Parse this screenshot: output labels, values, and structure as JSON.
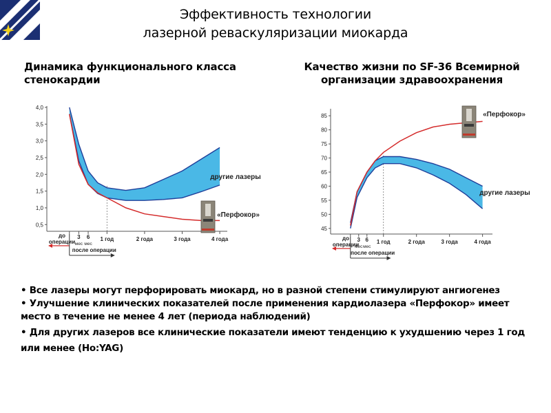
{
  "header": {
    "title_line1": "Эффективность технологии",
    "title_line2": "лазерной реваскуляризации миокарда",
    "logo_icon": "star-emblem-logo-icon"
  },
  "left_chart": {
    "subtitle": "Динамика функционального класса стенокардии"
  },
  "right_chart": {
    "subtitle": "Качество жизни по SF-36 Всемирной организации здравоохранения"
  },
  "bullets": [
    "• Все лазеры могут перфорировать миокард, но в разной степени стимулируют ангиогенез",
    "• Улучшение клинических показателей после применения кардиолазера «Перфокор» имеет место в течение не менее 4 лет (периода наблюдений)",
    "• Для других лазеров все клинические показатели имеют тенденцию к ухудшению через 1 год или менее (Ho:YAG)"
  ],
  "colors": {
    "perfokor_line": "#d42a2a",
    "band_fill": "#4ab8e6",
    "band_edge": "#1f3f9a",
    "axis": "#555555"
  },
  "chart_data": [
    {
      "type": "area",
      "x_ticks": [
        {
          "x": 0,
          "label": "до\nоперации"
        },
        {
          "x": 0.25,
          "label": "3\nмес"
        },
        {
          "x": 0.5,
          "label": "6\nмес"
        },
        {
          "x": 1,
          "label": "1 год"
        },
        {
          "x": 2,
          "label": "2 года"
        },
        {
          "x": 3,
          "label": "3 года"
        },
        {
          "x": 4,
          "label": "4 года"
        }
      ],
      "y_ticks": [
        "0,5",
        "1,0",
        "1,5",
        "2,0",
        "2,5",
        "3,0",
        "3,5",
        "4,0"
      ],
      "xlim": [
        -0.6,
        4.2
      ],
      "ylim": [
        0.3,
        4.0
      ],
      "after_label": "после операции",
      "series": [
        {
          "name": "«Перфокор»",
          "role": "line",
          "x": [
            0,
            0.25,
            0.5,
            0.75,
            1,
            1.5,
            2,
            2.5,
            3,
            3.5,
            4
          ],
          "y": [
            3.8,
            2.3,
            1.7,
            1.45,
            1.3,
            1.0,
            0.82,
            0.74,
            0.66,
            0.62,
            0.62
          ]
        },
        {
          "name": "другие лазеры",
          "role": "band",
          "x": [
            0,
            0.25,
            0.5,
            0.75,
            1,
            1.5,
            2,
            2.5,
            3,
            3.5,
            4
          ],
          "upper": [
            4.0,
            2.9,
            2.1,
            1.75,
            1.6,
            1.52,
            1.6,
            1.85,
            2.1,
            2.45,
            2.8
          ],
          "lower": [
            3.8,
            2.4,
            1.7,
            1.43,
            1.3,
            1.22,
            1.22,
            1.25,
            1.3,
            1.48,
            1.68
          ]
        }
      ]
    },
    {
      "type": "area",
      "x_ticks": [
        {
          "x": 0,
          "label": "до\nоперации"
        },
        {
          "x": 0.25,
          "label": "3\nмес"
        },
        {
          "x": 0.5,
          "label": "6\nмес"
        },
        {
          "x": 1,
          "label": "1 год"
        },
        {
          "x": 2,
          "label": "2 года"
        },
        {
          "x": 3,
          "label": "3 года"
        },
        {
          "x": 4,
          "label": "4 года"
        }
      ],
      "y_ticks": [
        "45",
        "50",
        "55",
        "60",
        "65",
        "70",
        "75",
        "80",
        "85"
      ],
      "xlim": [
        -0.6,
        4.3
      ],
      "ylim": [
        43,
        87
      ],
      "after_label": "после операции",
      "series": [
        {
          "name": "«Перфокор»",
          "role": "line",
          "x": [
            0,
            0.2,
            0.5,
            0.75,
            1,
            1.5,
            2,
            2.5,
            3,
            3.5,
            4
          ],
          "y": [
            46,
            58,
            65,
            69,
            72,
            76,
            79,
            81,
            82,
            82.5,
            83
          ]
        },
        {
          "name": "другие лазеры",
          "role": "band",
          "x": [
            0,
            0.2,
            0.5,
            0.75,
            1,
            1.5,
            2,
            2.5,
            3,
            3.5,
            4
          ],
          "upper": [
            47,
            58,
            65,
            69,
            70.5,
            70.5,
            69.5,
            68,
            66,
            63,
            60
          ],
          "lower": [
            45,
            56,
            63,
            66.5,
            68,
            68,
            66.5,
            64,
            61,
            57,
            52
          ]
        }
      ]
    }
  ]
}
